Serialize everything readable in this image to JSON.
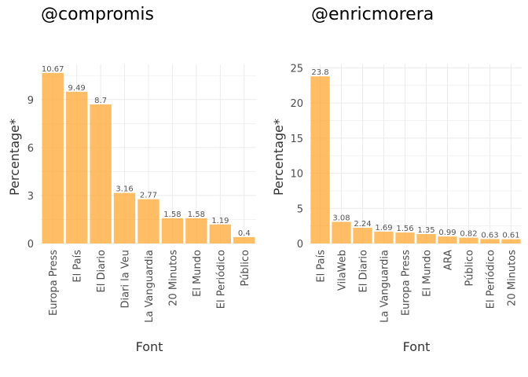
{
  "chart_data": [
    {
      "type": "bar",
      "title": "@compromis",
      "xlabel": "Font",
      "ylabel": "Percentage*",
      "categories": [
        "Europa Press",
        "El País",
        "El Diario",
        "Diari la Veu",
        "La Vanguardia",
        "20 Minutos",
        "El Mundo",
        "El Periódico",
        "Público"
      ],
      "values": [
        10.67,
        9.49,
        8.7,
        3.16,
        2.77,
        1.58,
        1.58,
        1.19,
        0.4
      ],
      "value_labels": [
        "10.67",
        "9.49",
        "8.7",
        "3.16",
        "2.77",
        "1.58",
        "1.58",
        "1.19",
        "0.4"
      ],
      "yticks": [
        0,
        3,
        6,
        9
      ],
      "ytick_labels": [
        "0",
        "3",
        "6",
        "9"
      ],
      "ylim": [
        0,
        11.2
      ],
      "grid": true,
      "bar_color": "#FFA833"
    },
    {
      "type": "bar",
      "title": "@enricmorera",
      "xlabel": "Font",
      "ylabel": "Percentage*",
      "categories": [
        "El País",
        "VilaWeb",
        "El Diario",
        "La Vanguardia",
        "Europa Press",
        "El Mundo",
        "ARA",
        "Público",
        "El Periódico",
        "20 Minutos"
      ],
      "values": [
        23.8,
        3.08,
        2.24,
        1.69,
        1.56,
        1.35,
        0.99,
        0.82,
        0.63,
        0.61
      ],
      "value_labels": [
        "23.8",
        "3.08",
        "2.24",
        "1.69",
        "1.56",
        "1.35",
        "0.99",
        "0.82",
        "0.63",
        "0.61"
      ],
      "yticks": [
        0,
        5,
        10,
        15,
        20,
        25
      ],
      "ytick_labels": [
        "0",
        "5",
        "10",
        "15",
        "20",
        "25"
      ],
      "ylim": [
        0,
        25.5
      ],
      "grid": true,
      "bar_color": "#FFA833"
    }
  ]
}
